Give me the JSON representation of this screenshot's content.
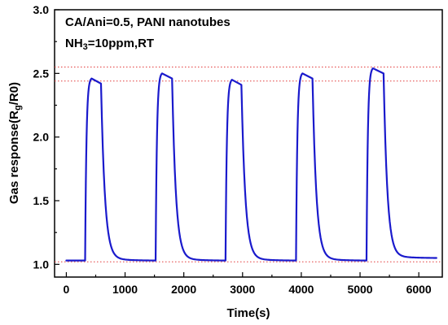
{
  "chart_data": {
    "type": "line",
    "xlabel": "Time(s)",
    "ylabel": "Gas response(R",
    "ylabel_sub": "g",
    "ylabel_end": "/R0)",
    "annotation_line1": "CA/Ani=0.5, PANI nanotubes",
    "annotation_line2_a": "NH",
    "annotation_line2_sub": "3",
    "annotation_line2_b": "=10ppm,RT",
    "xlim": [
      -200,
      6400
    ],
    "ylim": [
      0.9,
      3.0
    ],
    "x_ticks": [
      0,
      1000,
      2000,
      3000,
      4000,
      5000,
      6000
    ],
    "x_tick_labels": [
      "0",
      "1000",
      "2000",
      "3000",
      "4000",
      "5000",
      "6000"
    ],
    "y_ticks": [
      1.0,
      1.5,
      2.0,
      2.5,
      3.0
    ],
    "y_tick_labels": [
      "1.0",
      "1.5",
      "2.0",
      "2.5",
      "3.0"
    ],
    "reference_lines": [
      2.55,
      2.44,
      1.02
    ],
    "reference_color": "#e23a3a",
    "series": [
      {
        "color": "#1a1acc",
        "baseline": 1.03,
        "end": [
          6300,
          1.05
        ],
        "cycles": [
          {
            "on": 320,
            "peak_time": 430,
            "peak": 2.46,
            "off": 590,
            "recover_to": 1.03,
            "next_on": 1520
          },
          {
            "on": 1520,
            "peak_time": 1630,
            "peak": 2.5,
            "off": 1800,
            "recover_to": 1.03,
            "next_on": 2710
          },
          {
            "on": 2710,
            "peak_time": 2820,
            "peak": 2.45,
            "off": 2980,
            "recover_to": 1.03,
            "next_on": 3910
          },
          {
            "on": 3910,
            "peak_time": 4020,
            "peak": 2.5,
            "off": 4190,
            "recover_to": 1.03,
            "next_on": 5110
          },
          {
            "on": 5110,
            "peak_time": 5220,
            "peak": 2.54,
            "off": 5400,
            "recover_to": 1.05,
            "next_on": 6300
          }
        ],
        "start": [
          0,
          1.03
        ]
      }
    ]
  }
}
